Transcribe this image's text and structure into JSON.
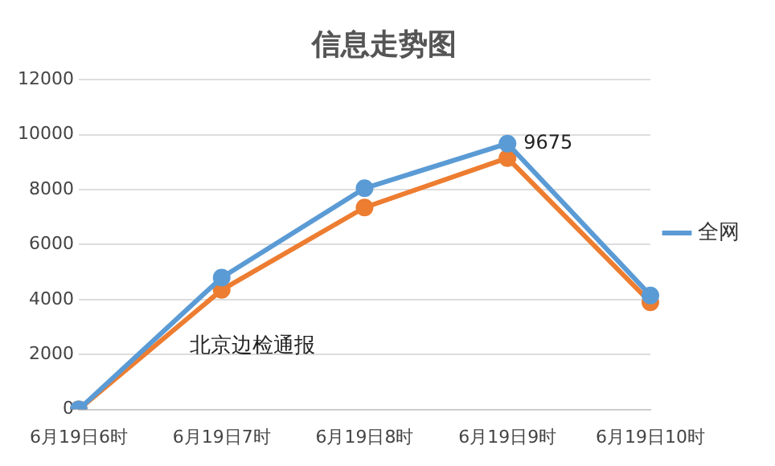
{
  "chart_data": {
    "type": "line",
    "title": "信息走势图",
    "categories": [
      "6月19日6时",
      "6月19日7时",
      "6月19日8时",
      "6月19日9时",
      "6月19日10时"
    ],
    "series": [
      {
        "name": "全网",
        "color": "#5b9bd5",
        "values": [
          0,
          4800,
          8050,
          9675,
          4150
        ],
        "value_labels": [
          null,
          null,
          null,
          "9675",
          null
        ]
      },
      {
        "color": "#ed7d31",
        "values": [
          0,
          4350,
          7350,
          9150,
          3900
        ]
      }
    ],
    "ylim": [
      0,
      12000
    ],
    "yticks": [
      0,
      2000,
      4000,
      6000,
      8000,
      10000,
      12000
    ],
    "annotations": [
      "北京边检通报"
    ],
    "grid": "y",
    "legend": "right",
    "marker": "circle",
    "line_style": "solid"
  }
}
